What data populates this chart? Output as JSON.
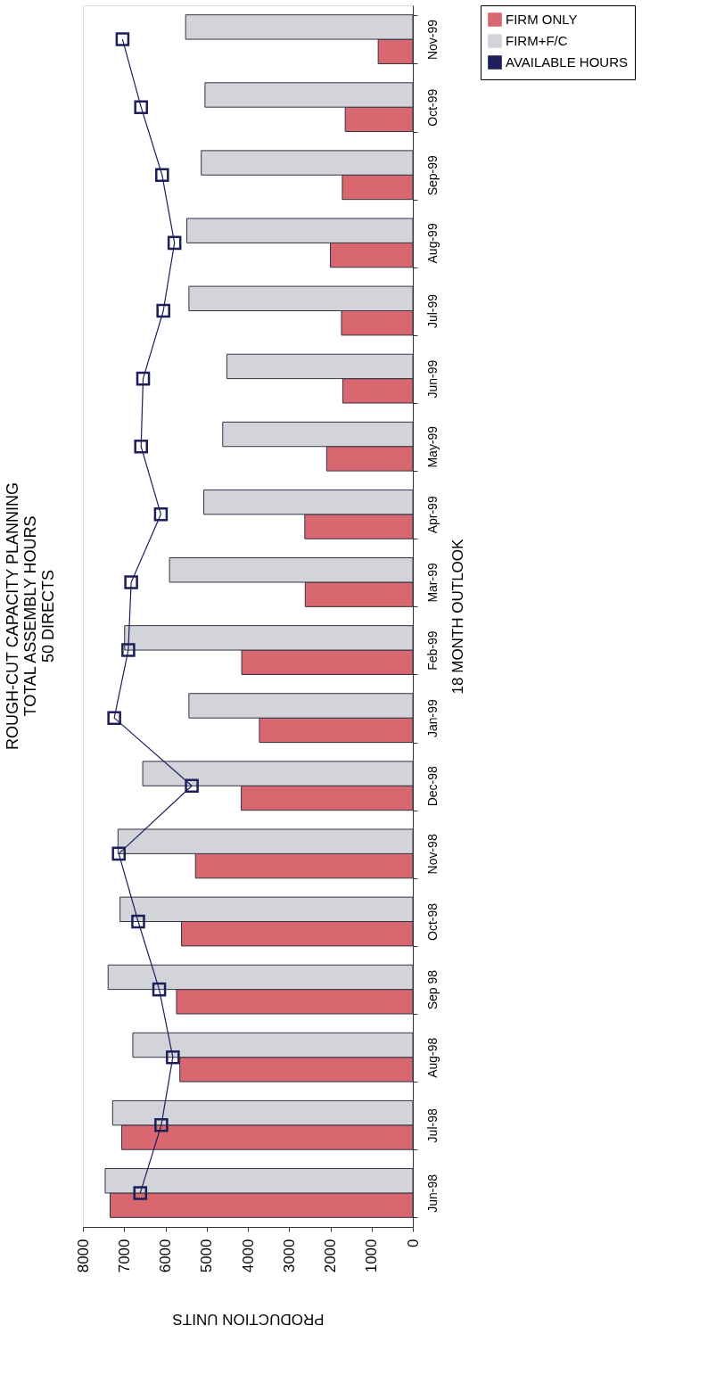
{
  "chart_data": {
    "type": "bar",
    "orientation": "horizontal",
    "title": [
      "ROUGH-CUT CAPACITY PLANNING",
      "TOTAL ASSEMBLY HOURS",
      "50 DIRECTS"
    ],
    "xlabel": "PRODUCTION UNITS",
    "ylabel": "18 MONTH OUTLOOK",
    "categories": [
      "Nov-99",
      "Oct-99",
      "Sep-99",
      "Aug-99",
      "Jul-99",
      "Jun-99",
      "May-99",
      "Apr-99",
      "Mar-99",
      "Feb-99",
      "Jan-99",
      "Dec-98",
      "Nov-98",
      "Oct-98",
      "Sep 98",
      "Aug-98",
      "Jul-98",
      "Jun-98"
    ],
    "series": [
      {
        "name": "FIRM ONLY",
        "color": "#d9676f",
        "values": [
          840,
          1640,
          1710,
          2000,
          1730,
          1700,
          2090,
          2620,
          2610,
          4150,
          3720,
          4160,
          5270,
          5610,
          5730,
          5650,
          7060,
          7340
        ]
      },
      {
        "name": "FIRM+F/C",
        "color": "#d3d3da",
        "values": [
          5510,
          5040,
          5130,
          5480,
          5430,
          4510,
          4610,
          5070,
          5900,
          6990,
          5430,
          6550,
          7150,
          7100,
          7390,
          6790,
          7280,
          7460
        ]
      },
      {
        "name": "AVAILABLE HOURS",
        "type": "line",
        "color": "#1e1e5a",
        "marker": "square",
        "line_style": "solid",
        "values": [
          7040,
          6590,
          6080,
          5780,
          6050,
          6540,
          6590,
          6110,
          6830,
          6900,
          7240,
          5360,
          7130,
          6660,
          6150,
          5820,
          6100,
          6610
        ]
      }
    ],
    "xlim": [
      8000,
      0
    ],
    "xticks": [
      8000,
      7000,
      6000,
      5000,
      4000,
      3000,
      2000,
      1000,
      0
    ],
    "grid": false,
    "legend": "right"
  }
}
